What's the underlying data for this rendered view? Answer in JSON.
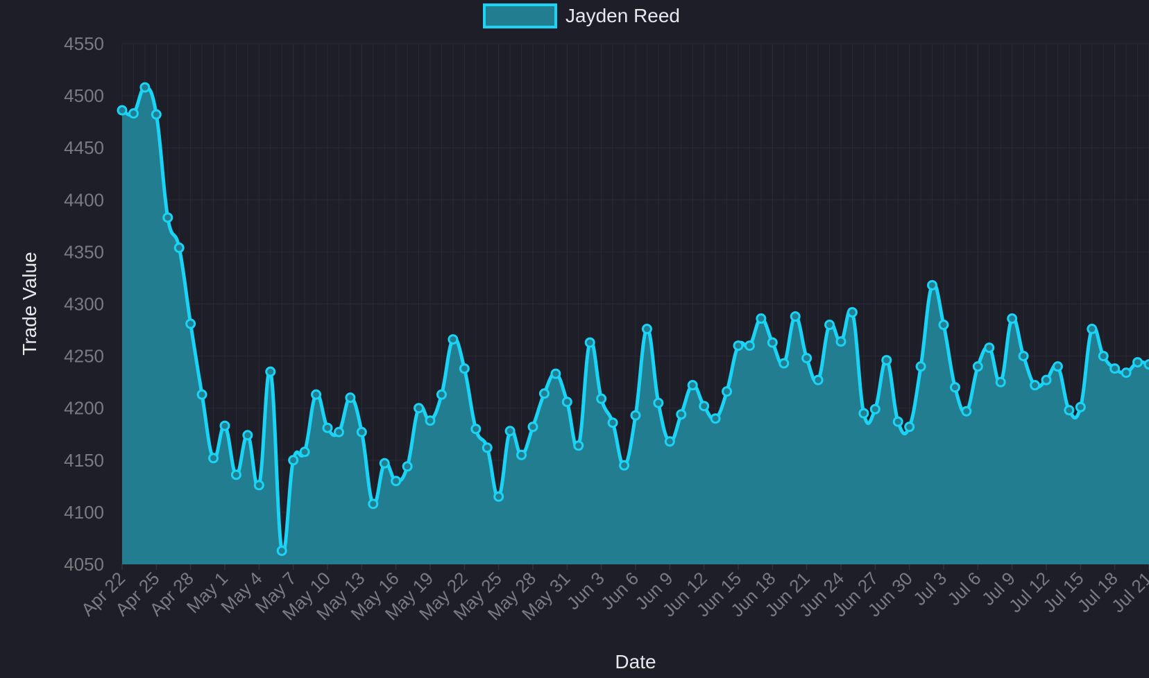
{
  "chart_data": {
    "type": "area",
    "xlabel": "Date",
    "ylabel": "Trade Value",
    "ylim": [
      4050,
      4550
    ],
    "yticks": [
      4050,
      4100,
      4150,
      4200,
      4250,
      4300,
      4350,
      4400,
      4450,
      4500,
      4550
    ],
    "xticks": [
      "Apr 22",
      "Apr 25",
      "Apr 28",
      "May 1",
      "May 4",
      "May 7",
      "May 10",
      "May 13",
      "May 16",
      "May 19",
      "May 22",
      "May 25",
      "May 28",
      "May 31",
      "Jun 3",
      "Jun 6",
      "Jun 9",
      "Jun 12",
      "Jun 15",
      "Jun 18",
      "Jun 21",
      "Jun 24",
      "Jun 27",
      "Jun 30",
      "Jul 3",
      "Jul 6",
      "Jul 9",
      "Jul 12",
      "Jul 15",
      "Jul 18",
      "Jul 21"
    ],
    "legend_position": "top-center",
    "grid": true,
    "colors": {
      "line": "#1ad3f5",
      "fill": "#237d90",
      "background": "#1e1e28"
    },
    "series": [
      {
        "name": "Jayden Reed",
        "x": [
          "Apr 22",
          "Apr 23",
          "Apr 24",
          "Apr 25",
          "Apr 26",
          "Apr 27",
          "Apr 28",
          "Apr 29",
          "Apr 30",
          "May 1",
          "May 2",
          "May 3",
          "May 4",
          "May 5",
          "May 6",
          "May 7",
          "May 8",
          "May 9",
          "May 10",
          "May 11",
          "May 12",
          "May 13",
          "May 14",
          "May 15",
          "May 16",
          "May 17",
          "May 18",
          "May 19",
          "May 20",
          "May 21",
          "May 22",
          "May 23",
          "May 24",
          "May 25",
          "May 26",
          "May 27",
          "May 28",
          "May 29",
          "May 30",
          "May 31",
          "Jun 1",
          "Jun 2",
          "Jun 3",
          "Jun 4",
          "Jun 5",
          "Jun 6",
          "Jun 7",
          "Jun 8",
          "Jun 9",
          "Jun 10",
          "Jun 11",
          "Jun 12",
          "Jun 13",
          "Jun 14",
          "Jun 15",
          "Jun 16",
          "Jun 17",
          "Jun 18",
          "Jun 19",
          "Jun 20",
          "Jun 21",
          "Jun 22",
          "Jun 23",
          "Jun 24",
          "Jun 25",
          "Jun 26",
          "Jun 27",
          "Jun 28",
          "Jun 29",
          "Jun 30",
          "Jul 1",
          "Jul 2",
          "Jul 3",
          "Jul 4",
          "Jul 5",
          "Jul 6",
          "Jul 7",
          "Jul 8",
          "Jul 9",
          "Jul 10",
          "Jul 11",
          "Jul 12",
          "Jul 13",
          "Jul 14",
          "Jul 15",
          "Jul 16",
          "Jul 17",
          "Jul 18",
          "Jul 19",
          "Jul 20",
          "Jul 21"
        ],
        "values": [
          4486,
          4483,
          4508,
          4482,
          4383,
          4354,
          4281,
          4213,
          4152,
          4183,
          4136,
          4174,
          4126,
          4235,
          4063,
          4150,
          4158,
          4213,
          4181,
          4177,
          4210,
          4177,
          4108,
          4147,
          4130,
          4144,
          4200,
          4188,
          4213,
          4266,
          4238,
          4180,
          4162,
          4115,
          4178,
          4155,
          4182,
          4214,
          4233,
          4206,
          4164,
          4263,
          4209,
          4186,
          4145,
          4193,
          4276,
          4205,
          4168,
          4194,
          4222,
          4202,
          4190,
          4216,
          4260,
          4260,
          4286,
          4263,
          4243,
          4288,
          4248,
          4227,
          4280,
          4264,
          4292,
          4195,
          4199,
          4246,
          4187,
          4182,
          4240,
          4318,
          4280,
          4220,
          4197,
          4240,
          4258,
          4225,
          4286,
          4250,
          4222,
          4227,
          4240,
          4198,
          4201,
          4276,
          4250,
          4238,
          4234,
          4244,
          4242
        ]
      }
    ]
  }
}
